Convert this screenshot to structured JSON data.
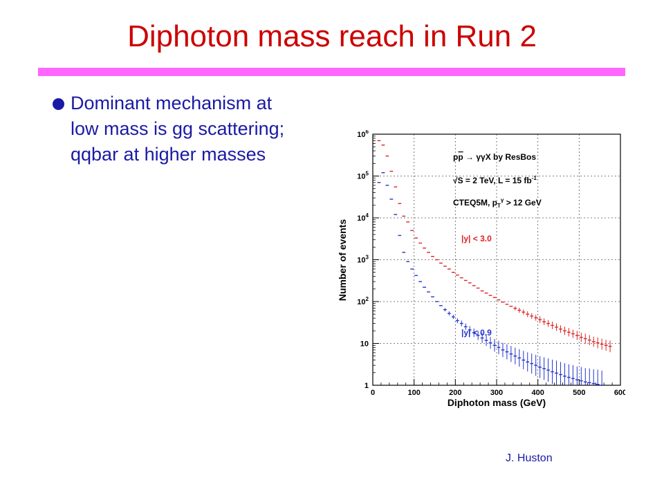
{
  "slide": {
    "title": "Diphoton mass reach in Run 2",
    "bullet": "Dominant mechanism at low mass is gg scattering; qqbar at higher masses",
    "author": "J. Huston",
    "colors": {
      "title": "#cc0000",
      "text": "#1a1aa6",
      "rule": "#ff66ff",
      "bullet": "#1a1aa6"
    }
  },
  "chart_data": {
    "type": "scatter",
    "xlabel": "Diphoton mass (GeV)",
    "ylabel": "Number of events",
    "xlim": [
      0,
      600
    ],
    "ylim": [
      1,
      1000000
    ],
    "yscale": "log",
    "grid": true,
    "x_ticks": [
      "0",
      "100",
      "200",
      "300",
      "400",
      "500",
      "600"
    ],
    "y_ticks": [
      {
        "base": "1",
        "exp": ""
      },
      {
        "base": "10",
        "exp": ""
      },
      {
        "base": "10",
        "exp": "2"
      },
      {
        "base": "10",
        "exp": "3"
      },
      {
        "base": "10",
        "exp": "4"
      },
      {
        "base": "10",
        "exp": "5"
      },
      {
        "base": "10",
        "exp": "6"
      }
    ],
    "annotations": [
      {
        "pre": "p",
        "bar": "p",
        "post": " → γγX by ResBos"
      },
      {
        "pre": "√S = 2 TeV, L = 15 fb",
        "sup": "-1"
      },
      {
        "pre": "CTEQ5M, p",
        "sub": "T",
        "sup": "γ",
        "post": " > 12 GeV"
      }
    ],
    "series": [
      {
        "name": "|y| < 3.0",
        "color": "#dd2222",
        "x": [
          15,
          25,
          35,
          45,
          55,
          65,
          75,
          85,
          95,
          105,
          115,
          125,
          135,
          145,
          155,
          165,
          175,
          185,
          195,
          205,
          215,
          225,
          235,
          245,
          255,
          265,
          275,
          285,
          295,
          305,
          315,
          325,
          335,
          345,
          355,
          365,
          375,
          385,
          395,
          405,
          415,
          425,
          435,
          445,
          455,
          465,
          475,
          485,
          495,
          505,
          515,
          525,
          535,
          545,
          555,
          565,
          575
        ],
        "y": [
          700000,
          550000,
          300000,
          130000,
          55000,
          22000,
          11000,
          8000,
          5000,
          3300,
          2500,
          1900,
          1500,
          1200,
          1000,
          830,
          700,
          600,
          500,
          430,
          370,
          320,
          280,
          240,
          210,
          180,
          160,
          140,
          125,
          110,
          97,
          86,
          77,
          69,
          62,
          56,
          50,
          45,
          41,
          37,
          33,
          30,
          27,
          24.5,
          22,
          20,
          18.5,
          17,
          15.5,
          14,
          13,
          12,
          11,
          10.3,
          9.6,
          9,
          8.5
        ],
        "err": [
          0,
          0,
          0,
          0,
          0,
          0,
          0,
          0,
          0,
          0,
          0,
          0,
          0,
          0,
          0,
          0,
          0,
          0,
          0,
          0,
          0,
          0,
          0,
          0,
          0,
          0,
          0,
          0,
          0,
          0,
          0,
          0,
          0,
          0.05,
          0.06,
          0.06,
          0.07,
          0.07,
          0.07,
          0.08,
          0.08,
          0.08,
          0.09,
          0.09,
          0.09,
          0.1,
          0.1,
          0.1,
          0.11,
          0.11,
          0.12,
          0.12,
          0.12,
          0.13,
          0.13,
          0.13,
          0.14
        ]
      },
      {
        "name": "|y| < 0.9",
        "color": "#2233cc",
        "x": [
          15,
          25,
          35,
          45,
          55,
          65,
          75,
          85,
          95,
          105,
          115,
          125,
          135,
          145,
          155,
          165,
          175,
          185,
          195,
          205,
          215,
          225,
          235,
          245,
          255,
          265,
          275,
          285,
          295,
          305,
          315,
          325,
          335,
          345,
          355,
          365,
          375,
          385,
          395,
          405,
          415,
          425,
          435,
          445,
          455,
          465,
          475,
          485,
          495,
          505,
          515,
          525,
          535,
          545,
          555,
          565,
          575
        ],
        "y": [
          70000,
          120000,
          60000,
          28000,
          12000,
          3800,
          1500,
          900,
          600,
          420,
          300,
          220,
          170,
          130,
          100,
          80,
          64,
          52,
          43,
          35,
          30,
          25,
          21,
          18,
          15.5,
          13.5,
          11.8,
          10.3,
          9,
          8,
          7,
          6.3,
          5.6,
          5,
          4.5,
          4,
          3.6,
          3.3,
          3,
          2.7,
          2.5,
          2.3,
          2.1,
          1.95,
          1.8,
          1.65,
          1.55,
          1.45,
          1.35,
          1.28,
          1.2,
          1.15,
          1.1,
          1.05,
          1.0,
          0.97,
          0.94
        ],
        "err": [
          0,
          0,
          0,
          0,
          0,
          0,
          0,
          0,
          0,
          0,
          0,
          0,
          0,
          0,
          0,
          0,
          0.04,
          0.05,
          0.05,
          0.06,
          0.07,
          0.08,
          0.09,
          0.1,
          0.11,
          0.12,
          0.13,
          0.14,
          0.15,
          0.16,
          0.17,
          0.18,
          0.19,
          0.2,
          0.21,
          0.22,
          0.23,
          0.24,
          0.25,
          0.26,
          0.27,
          0.28,
          0.29,
          0.3,
          0.3,
          0.31,
          0.31,
          0.32,
          0.32,
          0.33,
          0.33,
          0.34,
          0.34,
          0.35,
          0.35,
          0.36,
          0.36
        ]
      }
    ]
  }
}
